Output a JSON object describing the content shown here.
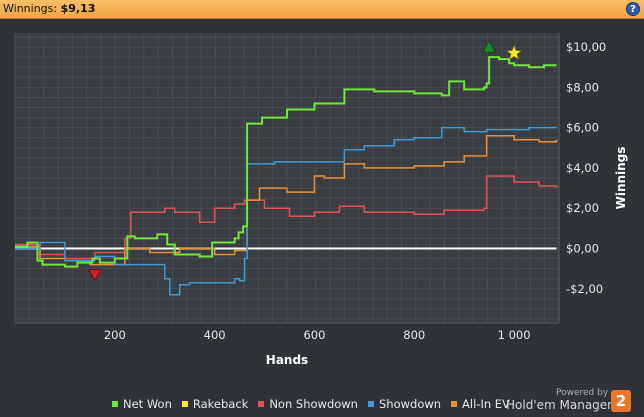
{
  "header": {
    "label": "Winnings:",
    "value": "$9,13",
    "help_icon": "?"
  },
  "chart_data": {
    "type": "line",
    "xlabel": "Hands",
    "ylabel": "Winnings",
    "xlim": [
      0,
      1090
    ],
    "ylim": [
      -3.7,
      10.7
    ],
    "xticks": [
      200,
      400,
      600,
      800,
      1000
    ],
    "xtick_labels": [
      "200",
      "400",
      "600",
      "800",
      "1 000"
    ],
    "yticks": [
      -2,
      0,
      2,
      4,
      6,
      8,
      10
    ],
    "ytick_labels": [
      "-$2,00",
      "$0,00",
      "$2,00",
      "$4,00",
      "$6,00",
      "$8,00",
      "$10,00"
    ],
    "grid": true,
    "legend_position": "bottom",
    "series": [
      {
        "name": "Net Won",
        "color": "#6ee83a",
        "x": [
          0,
          25,
          45,
          55,
          100,
          125,
          155,
          170,
          200,
          225,
          240,
          285,
          305,
          320,
          370,
          395,
          440,
          448,
          457,
          465,
          495,
          545,
          600,
          660,
          720,
          800,
          855,
          870,
          900,
          940,
          945,
          950,
          970,
          990,
          1000,
          1030,
          1060,
          1085
        ],
        "y": [
          0.1,
          0.3,
          -0.6,
          -0.8,
          -0.9,
          -0.7,
          -0.5,
          -0.7,
          -0.5,
          0.6,
          0.5,
          0.7,
          0.2,
          -0.3,
          -0.4,
          0.3,
          0.5,
          0.8,
          1.1,
          6.2,
          6.5,
          6.9,
          7.2,
          7.9,
          7.8,
          7.7,
          7.6,
          8.3,
          7.9,
          8.0,
          8.2,
          9.5,
          9.4,
          9.2,
          9.1,
          9.0,
          9.1,
          9.1
        ]
      },
      {
        "name": "Rakeback",
        "color": "#f4e83a",
        "x": [
          0,
          1085
        ],
        "y": [
          0,
          0
        ]
      },
      {
        "name": "Non Showdown",
        "color": "#e05252",
        "x": [
          0,
          50,
          100,
          160,
          220,
          232,
          300,
          320,
          370,
          400,
          440,
          460,
          500,
          550,
          600,
          650,
          700,
          800,
          860,
          940,
          945,
          1000,
          1050,
          1085
        ],
        "y": [
          0.2,
          -0.3,
          -0.5,
          -0.2,
          0.5,
          1.8,
          2.0,
          1.8,
          1.3,
          2.0,
          2.2,
          2.4,
          2.0,
          1.6,
          1.8,
          2.1,
          1.8,
          1.7,
          1.9,
          2.0,
          3.6,
          3.3,
          3.1,
          3.0
        ]
      },
      {
        "name": "Showdown",
        "color": "#3d9ad8",
        "x": [
          0,
          50,
          100,
          160,
          200,
          240,
          300,
          310,
          330,
          350,
          440,
          450,
          460,
          465,
          520,
          600,
          660,
          700,
          760,
          800,
          855,
          900,
          945,
          1000,
          1030,
          1085
        ],
        "y": [
          0,
          0.3,
          -0.6,
          -0.4,
          -0.8,
          -0.8,
          -1.5,
          -2.3,
          -1.8,
          -1.7,
          -1.5,
          -1.6,
          -0.5,
          4.2,
          4.3,
          4.3,
          4.9,
          5.1,
          5.4,
          5.5,
          6.0,
          5.8,
          5.9,
          5.9,
          6.0,
          6.0
        ]
      },
      {
        "name": "All-In EV",
        "color": "#e8913a",
        "x": [
          0,
          50,
          100,
          150,
          220,
          270,
          330,
          400,
          440,
          465,
          490,
          545,
          600,
          620,
          660,
          700,
          760,
          800,
          860,
          900,
          945,
          1000,
          1050,
          1085
        ],
        "y": [
          0.1,
          -0.5,
          -0.6,
          -0.8,
          0.0,
          -0.2,
          0.0,
          -0.3,
          -0.1,
          2.4,
          3.0,
          2.8,
          3.6,
          3.5,
          4.2,
          4.0,
          4.0,
          4.1,
          4.3,
          4.6,
          5.6,
          5.4,
          5.3,
          5.4
        ]
      }
    ],
    "markers": [
      {
        "kind": "triangle-down",
        "color": "#d81e1e",
        "x": 160,
        "y": -1.3
      },
      {
        "kind": "triangle-up",
        "color": "#1a8a2e",
        "x": 950,
        "y": 10.0
      },
      {
        "kind": "star",
        "color": "#f6ee2a",
        "x": 1000,
        "y": 9.7
      }
    ],
    "zero_line_color": "#ffffff"
  },
  "footer": {
    "powered_by": "Powered by",
    "brand": "Hold'em Manager",
    "brand_version": "2"
  }
}
